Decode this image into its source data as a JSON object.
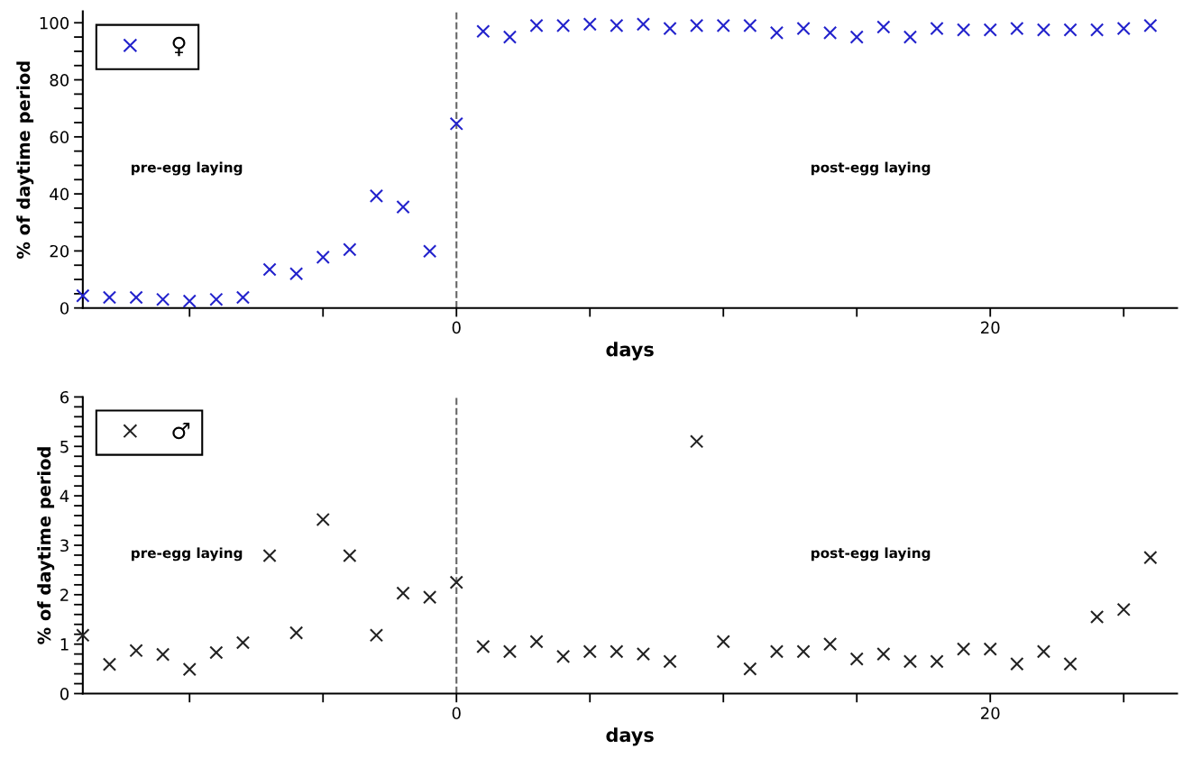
{
  "chart_data": [
    {
      "type": "scatter",
      "xlabel": "days",
      "ylabel": "% of daytime period",
      "marker": "cross",
      "legend": "top left",
      "grid": false,
      "xlim": [
        -14,
        27
      ],
      "xticks": [
        {
          "value": -10,
          "label": null
        },
        {
          "value": -5,
          "label": null
        },
        0,
        {
          "value": 5,
          "label": null
        },
        {
          "value": 10,
          "label": null
        },
        {
          "value": 15,
          "label": null
        },
        20,
        {
          "value": 25,
          "label": null
        }
      ],
      "ylim": [
        0,
        104
      ],
      "yticks": [
        0,
        {
          "value": 5,
          "label": null
        },
        {
          "value": 10,
          "label": null
        },
        {
          "value": 15,
          "label": null
        },
        20,
        {
          "value": 25,
          "label": null
        },
        {
          "value": 30,
          "label": null
        },
        {
          "value": 35,
          "label": null
        },
        40,
        {
          "value": 45,
          "label": null
        },
        {
          "value": 50,
          "label": null
        },
        {
          "value": 55,
          "label": null
        },
        60,
        {
          "value": 65,
          "label": null
        },
        {
          "value": 70,
          "label": null
        },
        {
          "value": 75,
          "label": null
        },
        80,
        {
          "value": 85,
          "label": null
        },
        {
          "value": 90,
          "label": null
        },
        {
          "value": 95,
          "label": null
        },
        100
      ],
      "x": [
        -14,
        -13,
        -12,
        -11,
        -10,
        -9,
        -8,
        -7,
        -6,
        -5,
        -4,
        -3,
        -2,
        -1,
        0,
        1,
        2,
        3,
        4,
        5,
        6,
        7,
        8,
        9,
        10,
        11,
        12,
        13,
        14,
        15,
        16,
        17,
        18,
        19,
        20,
        21,
        22,
        23,
        24,
        25,
        26
      ],
      "series": [
        {
          "name": "♀",
          "color": "#2222cc",
          "values": [
            4.3,
            3.7,
            3.7,
            3.0,
            2.4,
            3.0,
            3.7,
            13.5,
            12.0,
            17.8,
            20.5,
            39.3,
            35.4,
            19.9,
            64.6,
            97,
            95,
            99,
            99,
            99.5,
            99,
            99.5,
            98,
            99,
            99,
            99,
            96.5,
            98,
            96.5,
            95,
            98.5,
            95,
            98,
            97.5,
            97.5,
            98,
            97.5,
            97.5,
            97.5,
            98,
            99
          ]
        }
      ],
      "ref_lines": [
        {
          "axis": "x",
          "value": 0,
          "color": "#666666",
          "line_style": "dashed"
        }
      ],
      "annotations": [
        "pre-egg laying",
        "post-egg laying"
      ]
    },
    {
      "type": "scatter",
      "xlabel": "days",
      "ylabel": "% of daytime period",
      "marker": "cross",
      "legend": "top left",
      "grid": false,
      "xlim": [
        -14,
        27
      ],
      "xticks": [
        {
          "value": -10,
          "label": null
        },
        {
          "value": -5,
          "label": null
        },
        0,
        {
          "value": 5,
          "label": null
        },
        {
          "value": 10,
          "label": null
        },
        {
          "value": 15,
          "label": null
        },
        20,
        {
          "value": 25,
          "label": null
        }
      ],
      "ylim": [
        0,
        6
      ],
      "yticks": [
        0,
        {
          "value": 0.2,
          "label": null
        },
        {
          "value": 0.4,
          "label": null
        },
        {
          "value": 0.6,
          "label": null
        },
        {
          "value": 0.8,
          "label": null
        },
        1,
        {
          "value": 1.2,
          "label": null
        },
        {
          "value": 1.4,
          "label": null
        },
        {
          "value": 1.6,
          "label": null
        },
        {
          "value": 1.8,
          "label": null
        },
        2,
        {
          "value": 2.2,
          "label": null
        },
        {
          "value": 2.4,
          "label": null
        },
        {
          "value": 2.6,
          "label": null
        },
        {
          "value": 2.8,
          "label": null
        },
        3,
        {
          "value": 3.2,
          "label": null
        },
        {
          "value": 3.4,
          "label": null
        },
        {
          "value": 3.6,
          "label": null
        },
        {
          "value": 3.8,
          "label": null
        },
        4,
        {
          "value": 4.2,
          "label": null
        },
        {
          "value": 4.4,
          "label": null
        },
        {
          "value": 4.6,
          "label": null
        },
        {
          "value": 4.8,
          "label": null
        },
        5,
        {
          "value": 5.2,
          "label": null
        },
        {
          "value": 5.4,
          "label": null
        },
        {
          "value": 5.6,
          "label": null
        },
        {
          "value": 5.8,
          "label": null
        },
        6
      ],
      "x": [
        -14,
        -13,
        -12,
        -11,
        -10,
        -9,
        -8,
        -7,
        -6,
        -5,
        -4,
        -3,
        -2,
        -1,
        0,
        1,
        2,
        3,
        4,
        5,
        6,
        7,
        8,
        9,
        10,
        11,
        12,
        13,
        14,
        15,
        16,
        17,
        18,
        19,
        20,
        21,
        22,
        23,
        24,
        25,
        26
      ],
      "series": [
        {
          "name": "♂",
          "color": "#222222",
          "values": [
            1.18,
            0.59,
            0.87,
            0.79,
            0.49,
            0.83,
            1.03,
            2.79,
            1.23,
            3.52,
            2.79,
            1.18,
            2.03,
            1.95,
            2.25,
            0.95,
            0.85,
            1.05,
            0.75,
            0.85,
            0.85,
            0.8,
            0.65,
            5.1,
            1.05,
            0.5,
            0.85,
            0.85,
            1.0,
            0.7,
            0.8,
            0.65,
            0.65,
            0.9,
            0.9,
            0.6,
            0.85,
            0.6,
            1.55,
            1.7,
            2.75
          ]
        }
      ],
      "ref_lines": [
        {
          "axis": "x",
          "value": 0,
          "color": "#666666",
          "line_style": "dashed"
        }
      ],
      "annotations": [
        "pre-egg laying",
        "post-egg laying"
      ]
    }
  ]
}
